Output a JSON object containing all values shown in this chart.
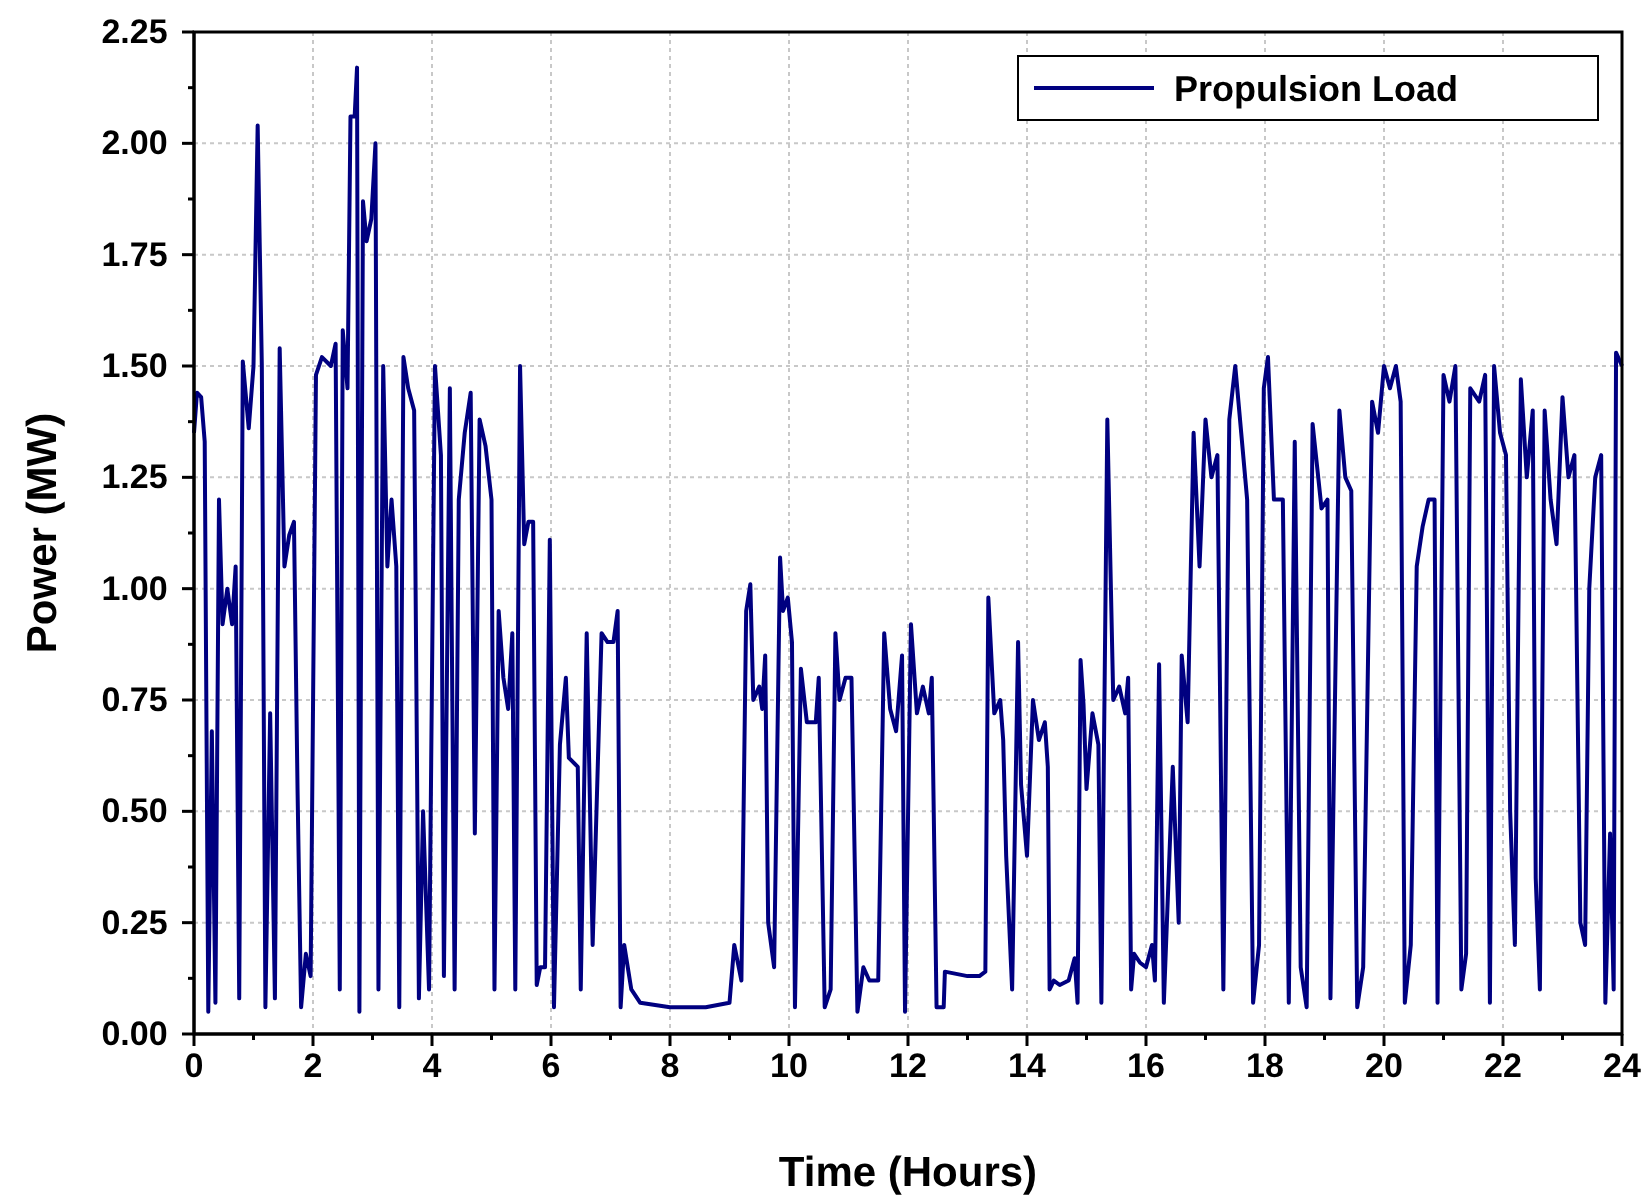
{
  "chart_data": {
    "type": "line",
    "xlabel": "Time (Hours)",
    "ylabel": "Power (MW)",
    "xlim": [
      0,
      24
    ],
    "ylim": [
      0,
      2.25
    ],
    "xticks": [
      0,
      {
        "value": 1,
        "label": null
      },
      2,
      {
        "value": 3,
        "label": null
      },
      4,
      {
        "value": 5,
        "label": null
      },
      6,
      {
        "value": 7,
        "label": null
      },
      8,
      {
        "value": 9,
        "label": null
      },
      10,
      {
        "value": 11,
        "label": null
      },
      12,
      {
        "value": 13,
        "label": null
      },
      14,
      {
        "value": 15,
        "label": null
      },
      16,
      {
        "value": 17,
        "label": null
      },
      18,
      {
        "value": 19,
        "label": null
      },
      20,
      {
        "value": 21,
        "label": null
      },
      22,
      {
        "value": 23,
        "label": null
      },
      24
    ],
    "yticks": [
      {
        "value": 0,
        "label": "0.00"
      },
      {
        "value": 0.125,
        "label": null
      },
      {
        "value": 0.25,
        "label": "0.25"
      },
      {
        "value": 0.375,
        "label": null
      },
      {
        "value": 0.5,
        "label": "0.50"
      },
      {
        "value": 0.625,
        "label": null
      },
      {
        "value": 0.75,
        "label": "0.75"
      },
      {
        "value": 0.875,
        "label": null
      },
      {
        "value": 1,
        "label": "1.00"
      },
      {
        "value": 1.125,
        "label": null
      },
      {
        "value": 1.25,
        "label": "1.25"
      },
      {
        "value": 1.375,
        "label": null
      },
      {
        "value": 1.5,
        "label": "1.50"
      },
      {
        "value": 1.625,
        "label": null
      },
      {
        "value": 1.75,
        "label": "1.75"
      },
      {
        "value": 1.875,
        "label": null
      },
      {
        "value": 2,
        "label": "2.00"
      },
      {
        "value": 2.125,
        "label": null
      },
      {
        "value": 2.25,
        "label": "2.25"
      }
    ],
    "grid": true,
    "legend": "top right",
    "marker": "none",
    "line_style": "solid",
    "series": [
      {
        "name": "Propulsion Load",
        "color": "#000080",
        "x": [
          0,
          0.05,
          0.12,
          0.18,
          0.24,
          0.3,
          0.36,
          0.42,
          0.48,
          0.56,
          0.64,
          0.7,
          0.76,
          0.82,
          0.92,
          1.0,
          1.07,
          1.14,
          1.2,
          1.28,
          1.36,
          1.44,
          1.52,
          1.6,
          1.68,
          1.74,
          1.8,
          1.88,
          1.96,
          2.05,
          2.15,
          2.3,
          2.38,
          2.45,
          2.5,
          2.58,
          2.63,
          2.7,
          2.74,
          2.78,
          2.84,
          2.9,
          2.98,
          3.05,
          3.1,
          3.18,
          3.25,
          3.32,
          3.4,
          3.45,
          3.52,
          3.6,
          3.7,
          3.78,
          3.85,
          3.95,
          4.05,
          4.15,
          4.2,
          4.3,
          4.38,
          4.45,
          4.55,
          4.65,
          4.72,
          4.8,
          4.9,
          5.0,
          5.05,
          5.12,
          5.2,
          5.28,
          5.35,
          5.4,
          5.48,
          5.55,
          5.62,
          5.7,
          5.76,
          5.82,
          5.9,
          5.98,
          6.05,
          6.15,
          6.25,
          6.3,
          6.45,
          6.5,
          6.6,
          6.7,
          6.85,
          6.95,
          7.05,
          7.12,
          7.17,
          7.23,
          7.35,
          7.5,
          8.0,
          8.6,
          9.0,
          9.08,
          9.2,
          9.28,
          9.35,
          9.4,
          9.5,
          9.55,
          9.6,
          9.65,
          9.75,
          9.85,
          9.9,
          9.98,
          10.05,
          10.1,
          10.2,
          10.3,
          10.45,
          10.5,
          10.6,
          10.7,
          10.78,
          10.85,
          10.95,
          11.05,
          11.15,
          11.25,
          11.35,
          11.5,
          11.6,
          11.7,
          11.8,
          11.9,
          11.95,
          12.05,
          12.15,
          12.25,
          12.35,
          12.4,
          12.48,
          12.6,
          12.62,
          13.0,
          13.2,
          13.3,
          13.35,
          13.45,
          13.55,
          13.6,
          13.65,
          13.75,
          13.85,
          13.9,
          14.0,
          14.1,
          14.2,
          14.3,
          14.35,
          14.38,
          14.45,
          14.55,
          14.7,
          14.8,
          14.85,
          14.9,
          14.95,
          15.0,
          15.1,
          15.2,
          15.25,
          15.35,
          15.45,
          15.55,
          15.65,
          15.7,
          15.75,
          15.8,
          15.9,
          16.0,
          16.1,
          16.15,
          16.22,
          16.3,
          16.45,
          16.55,
          16.6,
          16.7,
          16.8,
          16.9,
          17.0,
          17.1,
          17.2,
          17.3,
          17.4,
          17.5,
          17.6,
          17.7,
          17.8,
          17.9,
          17.98,
          18.05,
          18.15,
          18.3,
          18.4,
          18.5,
          18.6,
          18.7,
          18.8,
          18.95,
          19.05,
          19.1,
          19.25,
          19.35,
          19.45,
          19.55,
          19.65,
          19.8,
          19.9,
          20.0,
          20.1,
          20.2,
          20.28,
          20.35,
          20.45,
          20.55,
          20.65,
          20.75,
          20.85,
          20.9,
          21.0,
          21.1,
          21.2,
          21.3,
          21.38,
          21.45,
          21.6,
          21.7,
          21.78,
          21.85,
          21.95,
          22.05,
          22.12,
          22.2,
          22.3,
          22.4,
          22.5,
          22.55,
          22.62,
          22.7,
          22.8,
          22.9,
          23.0,
          23.1,
          23.2,
          23.3,
          23.38,
          23.45,
          23.55,
          23.65,
          23.72,
          23.8,
          23.86,
          23.9,
          24.0
        ],
        "values": [
          1.35,
          1.44,
          1.43,
          1.33,
          0.05,
          0.68,
          0.07,
          1.2,
          0.92,
          1.0,
          0.92,
          1.05,
          0.08,
          1.51,
          1.36,
          1.5,
          2.04,
          1.5,
          0.06,
          0.72,
          0.08,
          1.54,
          1.05,
          1.12,
          1.15,
          0.55,
          0.06,
          0.18,
          0.13,
          1.48,
          1.52,
          1.5,
          1.55,
          0.1,
          1.58,
          1.45,
          2.06,
          2.06,
          2.17,
          0.05,
          1.87,
          1.78,
          1.83,
          2.0,
          0.1,
          1.5,
          1.05,
          1.2,
          1.05,
          0.06,
          1.52,
          1.45,
          1.4,
          0.08,
          0.5,
          0.1,
          1.5,
          1.3,
          0.13,
          1.45,
          0.1,
          1.2,
          1.35,
          1.44,
          0.45,
          1.38,
          1.32,
          1.2,
          0.1,
          0.95,
          0.8,
          0.73,
          0.9,
          0.1,
          1.5,
          1.1,
          1.15,
          1.15,
          0.11,
          0.15,
          0.15,
          1.11,
          0.06,
          0.65,
          0.8,
          0.62,
          0.6,
          0.1,
          0.9,
          0.2,
          0.9,
          0.88,
          0.88,
          0.95,
          0.06,
          0.2,
          0.1,
          0.07,
          0.06,
          0.06,
          0.07,
          0.2,
          0.12,
          0.95,
          1.01,
          0.75,
          0.78,
          0.73,
          0.85,
          0.25,
          0.15,
          1.07,
          0.95,
          0.98,
          0.88,
          0.06,
          0.82,
          0.7,
          0.7,
          0.8,
          0.06,
          0.1,
          0.9,
          0.75,
          0.8,
          0.8,
          0.05,
          0.15,
          0.12,
          0.12,
          0.9,
          0.73,
          0.68,
          0.85,
          0.05,
          0.92,
          0.72,
          0.78,
          0.72,
          0.8,
          0.06,
          0.06,
          0.14,
          0.13,
          0.13,
          0.14,
          0.98,
          0.72,
          0.75,
          0.66,
          0.4,
          0.1,
          0.88,
          0.56,
          0.4,
          0.75,
          0.66,
          0.7,
          0.6,
          0.1,
          0.12,
          0.11,
          0.12,
          0.17,
          0.07,
          0.84,
          0.74,
          0.55,
          0.72,
          0.65,
          0.07,
          1.38,
          0.75,
          0.78,
          0.72,
          0.8,
          0.1,
          0.18,
          0.16,
          0.15,
          0.2,
          0.12,
          0.83,
          0.07,
          0.6,
          0.25,
          0.85,
          0.7,
          1.35,
          1.05,
          1.38,
          1.25,
          1.3,
          0.1,
          1.38,
          1.5,
          1.35,
          1.2,
          0.07,
          0.2,
          1.45,
          1.52,
          1.2,
          1.2,
          0.07,
          1.33,
          0.15,
          0.06,
          1.37,
          1.18,
          1.2,
          0.08,
          1.4,
          1.25,
          1.22,
          0.06,
          0.15,
          1.42,
          1.35,
          1.5,
          1.45,
          1.5,
          1.42,
          0.07,
          0.2,
          1.05,
          1.14,
          1.2,
          1.2,
          0.07,
          1.48,
          1.42,
          1.5,
          0.1,
          0.18,
          1.45,
          1.42,
          1.48,
          0.07,
          1.5,
          1.35,
          1.3,
          0.5,
          0.2,
          1.47,
          1.25,
          1.4,
          0.35,
          0.1,
          1.4,
          1.2,
          1.1,
          1.43,
          1.25,
          1.3,
          0.25,
          0.2,
          1.0,
          1.25,
          1.3,
          0.07,
          0.45,
          0.1,
          1.53,
          1.5
        ]
      }
    ]
  }
}
